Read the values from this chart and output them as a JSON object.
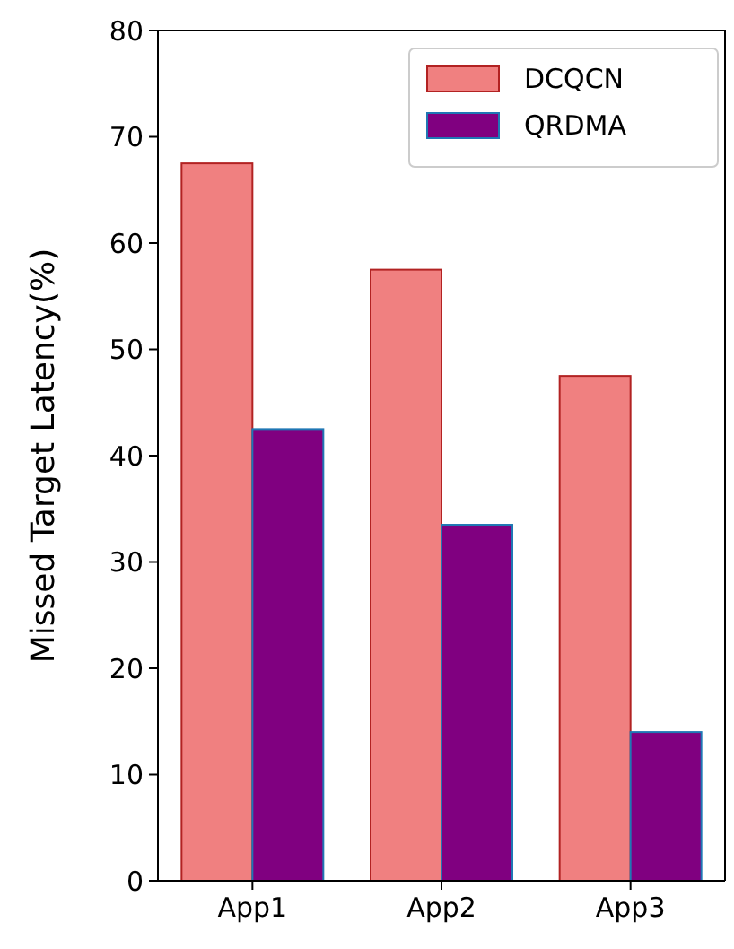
{
  "chart_data": {
    "type": "bar",
    "ylabel": "Missed Target Latency(%)",
    "categories": [
      "App1",
      "App2",
      "App3"
    ],
    "series": [
      {
        "name": "DCQCN",
        "color": "#f08080",
        "values": [
          67.5,
          57.5,
          47.5
        ]
      },
      {
        "name": "QRDMA",
        "color": "#800080",
        "values": [
          42.5,
          33.5,
          14
        ]
      }
    ],
    "ylim": [
      0,
      80
    ],
    "yticks": [
      0,
      10,
      20,
      30,
      40,
      50,
      60,
      70,
      80
    ],
    "legend": "top right",
    "grid": false
  }
}
